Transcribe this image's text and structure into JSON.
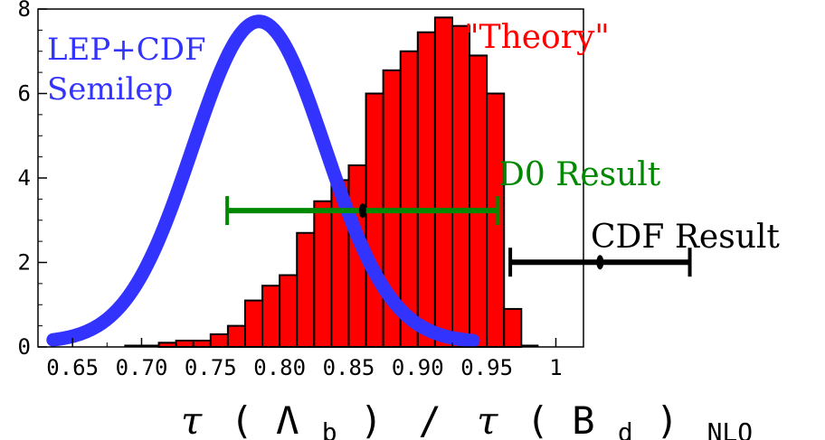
{
  "chart_data": {
    "type": "bar",
    "xlim": [
      0.625,
      1.02
    ],
    "ylim": [
      0,
      8
    ],
    "x_ticks": [
      0.65,
      0.7,
      0.75,
      0.8,
      0.85,
      0.9,
      0.95,
      1.0
    ],
    "x_tick_labels": [
      "0.65",
      "0.70",
      "0.75",
      "0.80",
      "0.85",
      "0.90",
      "0.95",
      "1"
    ],
    "y_ticks": [
      0,
      2,
      4,
      6,
      8
    ],
    "y_tick_labels": [
      "0",
      "2",
      "4",
      "6",
      "8"
    ],
    "xlabel": {
      "tau1": "τ",
      "open1": "(",
      "lambda": "Λ",
      "sub1": "b",
      "close1": ")",
      "slash": "/",
      "tau2": "τ",
      "open2": "(",
      "b": "B",
      "sub2": "d",
      "close2": ")",
      "sub3": "NLO"
    },
    "histogram": {
      "name": "\"Theory\"",
      "color": "#ff0000",
      "bin_width": 0.0125,
      "bin_starts": [
        0.7125,
        0.725,
        0.7375,
        0.75,
        0.7625,
        0.775,
        0.7875,
        0.8,
        0.8125,
        0.825,
        0.8375,
        0.85,
        0.8625,
        0.875,
        0.8875,
        0.9,
        0.9125,
        0.925,
        0.9375,
        0.95,
        0.9625
      ],
      "values": [
        0.1,
        0.15,
        0.15,
        0.3,
        0.5,
        1.1,
        1.45,
        1.7,
        2.7,
        3.45,
        3.95,
        4.3,
        6.0,
        6.55,
        7.0,
        7.45,
        7.8,
        7.6,
        6.9,
        6.0,
        0.9
      ]
    },
    "curve": {
      "name_lines": [
        "LEP+CDF",
        "Semilep"
      ],
      "color": "#3333ff",
      "type": "gaussian",
      "mean": 0.785,
      "sigma": 0.048,
      "peak": 7.6,
      "x_range": [
        0.636,
        0.94
      ]
    },
    "error_bars": [
      {
        "label": "D0 Result",
        "color": "#008800",
        "center": 0.86,
        "low": 0.762,
        "high": 0.958,
        "y": 3.25
      },
      {
        "label": "CDF Result",
        "color": "#000000",
        "center": 1.032,
        "low": 0.967,
        "high": 1.097,
        "y": 1.75
      }
    ],
    "theory_label_color": "#ff0000"
  }
}
